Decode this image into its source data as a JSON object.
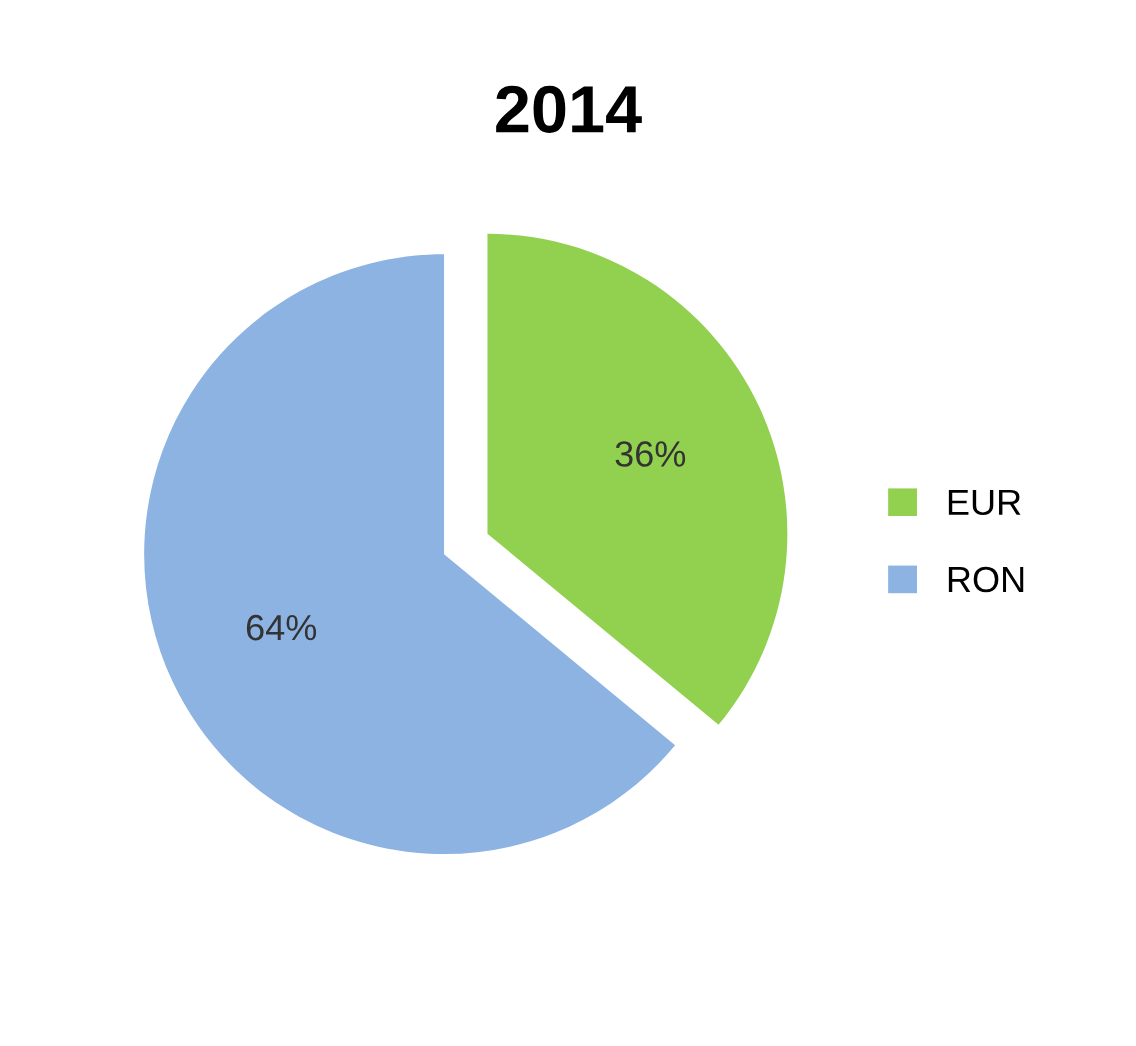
{
  "chart_data": {
    "type": "pie",
    "title": "2014",
    "categories": [
      "EUR",
      "RON"
    ],
    "values": [
      36,
      64
    ],
    "colors": [
      "#92d050",
      "#8db3e2"
    ],
    "value_labels": [
      "36%",
      "64%"
    ],
    "legend": "right"
  }
}
